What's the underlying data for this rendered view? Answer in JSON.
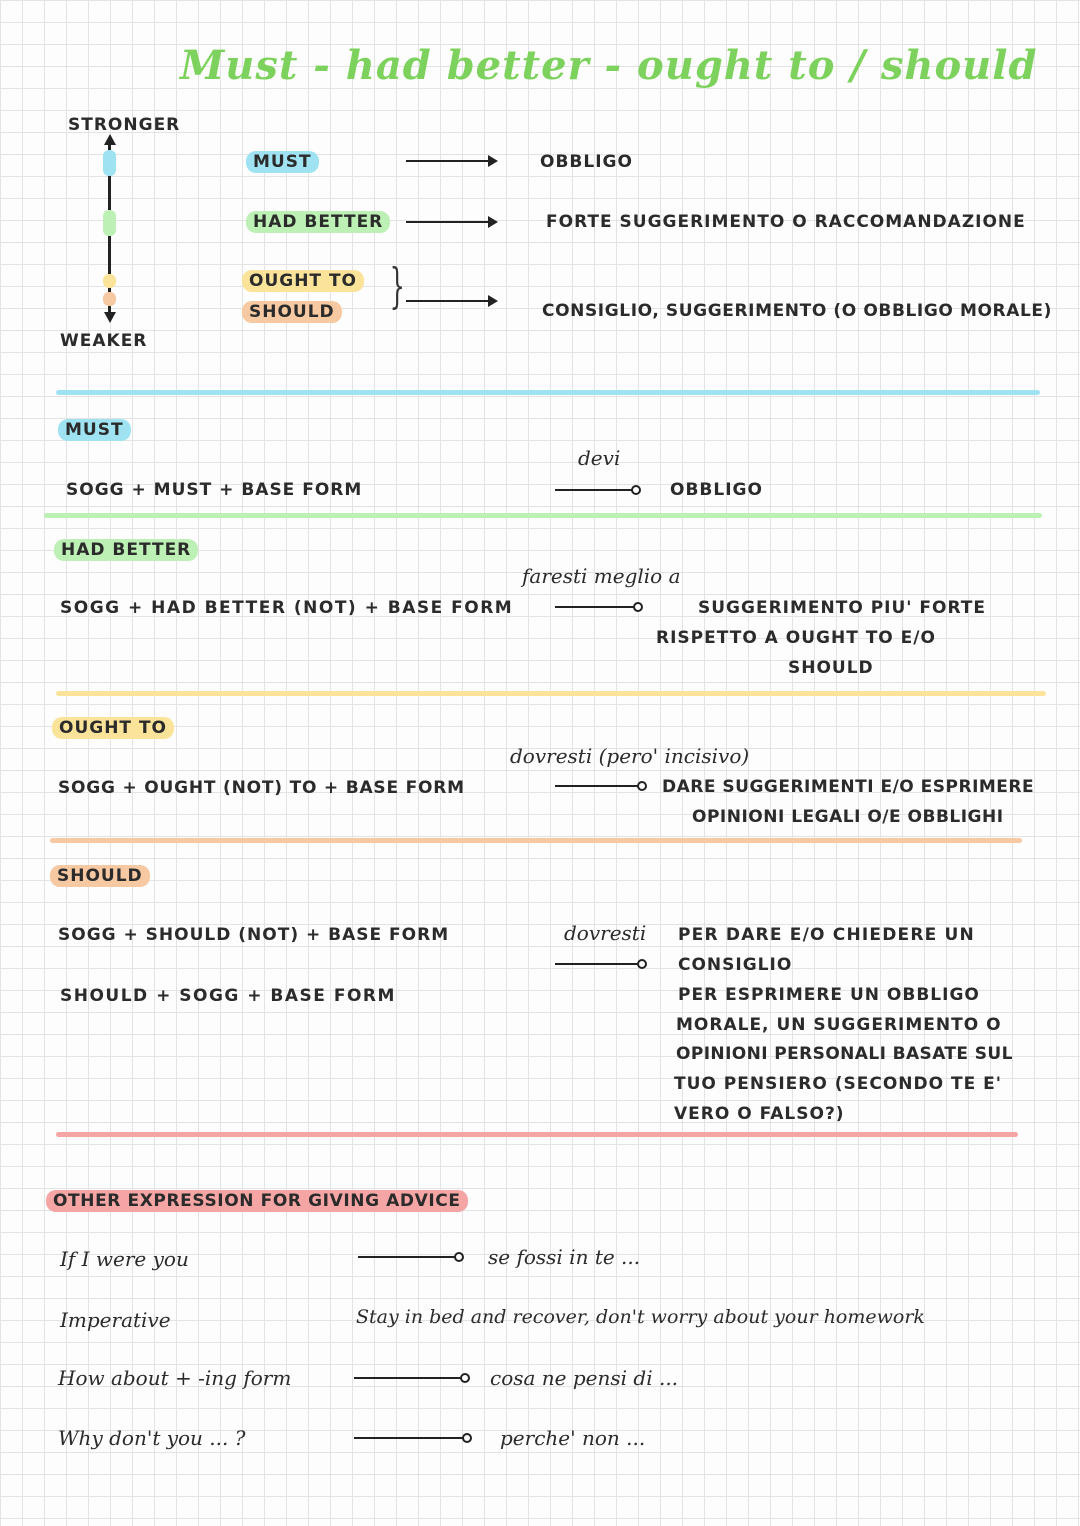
{
  "title": "Must - had better - ought to / should",
  "scale": {
    "stronger": "STRONGER",
    "weaker": "WEAKER",
    "rows": [
      {
        "label": "MUST",
        "meaning": "OBBLIGO"
      },
      {
        "label": "HAD BETTER",
        "meaning": "FORTE SUGGERIMENTO O RACCOMANDAZIONE"
      },
      {
        "label": "OUGHT TO",
        "meaning": ""
      },
      {
        "label": "SHOULD",
        "meaning": "CONSIGLIO, SUGGERIMENTO (O OBBLIGO MORALE)"
      }
    ]
  },
  "must": {
    "heading": "MUST",
    "formula": "SOGG + MUST + BASE FORM",
    "translation": "devi",
    "meaning": "OBBLIGO"
  },
  "had_better": {
    "heading": "HAD BETTER",
    "formula": "SOGG + HAD BETTER (NOT) + BASE FORM",
    "translation": "faresti meglio a",
    "meaning_lines": [
      "SUGGERIMENTO PIU' FORTE",
      "RISPETTO A OUGHT TO E/O",
      "SHOULD"
    ]
  },
  "ought_to": {
    "heading": "OUGHT TO",
    "formula": "SOGG + OUGHT (NOT) TO + BASE FORM",
    "translation": "dovresti (pero' incisivo)",
    "meaning_lines": [
      "DARE SUGGERIMENTI E/O ESPRIMERE",
      "OPINIONI LEGALI O/E OBBLIGHI"
    ]
  },
  "should": {
    "heading": "SHOULD",
    "formula_1": "SOGG + SHOULD (NOT) + BASE FORM",
    "formula_2": "SHOULD + SOGG + BASE FORM",
    "translation": "dovresti",
    "meaning_lines": [
      "PER DARE E/O CHIEDERE UN",
      "CONSIGLIO",
      "PER ESPRIMERE UN OBBLIGO",
      "MORALE, UN SUGGERIMENTO O",
      "OPINIONI PERSONALI BASATE SUL",
      "TUO PENSIERO (SECONDO TE E'",
      "VERO O FALSO?)"
    ]
  },
  "other": {
    "heading": "OTHER EXPRESSION FOR GIVING ADVICE",
    "rows": [
      {
        "expr": "If I were you",
        "meaning": "se fossi in te ..."
      },
      {
        "expr": "Imperative",
        "meaning": "Stay in bed and recover, don't worry about your homework"
      },
      {
        "expr": "How about + -ing form",
        "meaning": "cosa ne pensi di ..."
      },
      {
        "expr": "Why don't you ... ?",
        "meaning": "perche' non ..."
      }
    ]
  },
  "colors": {
    "title": "#7cd25c",
    "must": "#9fe3f2",
    "had_better": "#bdf0b4",
    "ought_to": "#fbe49a",
    "should": "#f7c9a2",
    "other": "#f6a5a5"
  }
}
